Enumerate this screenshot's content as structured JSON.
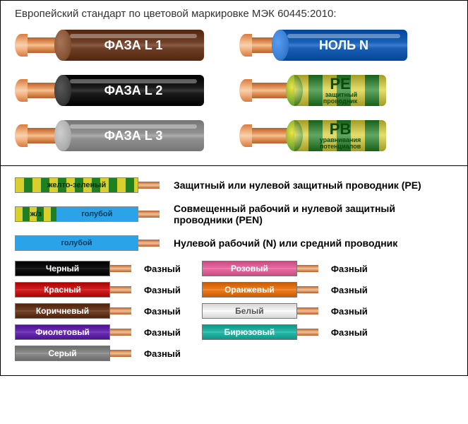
{
  "title": "Европейский стандарт по цветовой маркировке МЭК 60445:2010:",
  "copper_light": "#f3c197",
  "copper_dark": "#b8602a",
  "top_cables_left": [
    {
      "label": "ФАЗА  L 1",
      "color": "#6e3f27",
      "cap": "#8a5639",
      "rod_w": 50,
      "insul_w": 200,
      "text_color": "#ffffff"
    },
    {
      "label": "ФАЗА  L 2",
      "color": "#1a1a1a",
      "cap": "#3a3a3a",
      "rod_w": 50,
      "insul_w": 200,
      "text_color": "#ffffff"
    },
    {
      "label": "ФАЗА  L 3",
      "color": "#8f8f8f",
      "cap": "#b0b0b0",
      "rod_w": 50,
      "insul_w": 200,
      "text_color": "#ffffff"
    }
  ],
  "top_cables_right": [
    {
      "type": "solid",
      "label": "НОЛЬ  N",
      "color": "#1a5fb4",
      "cap": "#3a7fd4",
      "rod_w": 40,
      "insul_w": 180,
      "text_color": "#ffffff"
    },
    {
      "type": "striped",
      "label": "PE",
      "sublabel": "защитный\nпроводник",
      "c1": "#d9d030",
      "c2": "#1e8020",
      "rod_w": 60,
      "insul_w": 130,
      "text_color": "#0a4a0c"
    },
    {
      "type": "striped",
      "label": "PB",
      "sublabel": "уравнивания\nпотенциалов",
      "c1": "#d9d030",
      "c2": "#1e8020",
      "rod_w": 60,
      "insul_w": 130,
      "text_color": "#0a4a0c"
    }
  ],
  "legend_rows": [
    {
      "segments": [
        {
          "text": "желто-зеленый",
          "bg_css": "repeating-linear-gradient(90deg,#d9d030 0 12px,#1e8020 12px 24px)",
          "flex": 3,
          "color": "#083008"
        }
      ],
      "tip": true,
      "desc": "Защитный или нулевой защитный проводник (PE)"
    },
    {
      "segments": [
        {
          "text": "ж/з",
          "bg_css": "repeating-linear-gradient(90deg,#d9d030 0 10px,#1e8020 10px 20px)",
          "flex": 1,
          "color": "#083008"
        },
        {
          "text": "голубой",
          "bg_css": "#2aa3e8",
          "flex": 2,
          "color": "#063a5c"
        }
      ],
      "tip": true,
      "desc": "Совмещенный рабочий и нулевой защитный проводники (PEN)"
    },
    {
      "segments": [
        {
          "text": "голубой",
          "bg_css": "#2aa3e8",
          "flex": 3,
          "color": "#063a5c"
        }
      ],
      "tip": true,
      "desc": "Нулевой рабочий (N) или средний проводник"
    }
  ],
  "phase_left": [
    {
      "text": "Черный",
      "bg": "#111111",
      "color": "#ffffff",
      "label": "Фазный"
    },
    {
      "text": "Красный",
      "bg": "#cc1f1f",
      "color": "#ffffff",
      "label": "Фазный"
    },
    {
      "text": "Коричневый",
      "bg": "#6e3f27",
      "color": "#ffffff",
      "label": "Фазный"
    },
    {
      "text": "Фиолетовый",
      "bg": "#6a2fb0",
      "color": "#ffffff",
      "label": "Фазный"
    },
    {
      "text": "Серый",
      "bg": "#8a8a8a",
      "color": "#ffffff",
      "label": "Фазный"
    }
  ],
  "phase_right": [
    {
      "text": "Розовый",
      "bg": "#e66aa0",
      "color": "#ffffff",
      "label": "Фазный"
    },
    {
      "text": "Оранжевый",
      "bg": "#ea7a1e",
      "color": "#ffffff",
      "label": "Фазный"
    },
    {
      "text": "Белый",
      "bg": "#f4f4f4",
      "color": "#555555",
      "label": "Фазный"
    },
    {
      "text": "Бирюзовый",
      "bg": "#2ab6a6",
      "color": "#ffffff",
      "label": "Фазный"
    }
  ]
}
